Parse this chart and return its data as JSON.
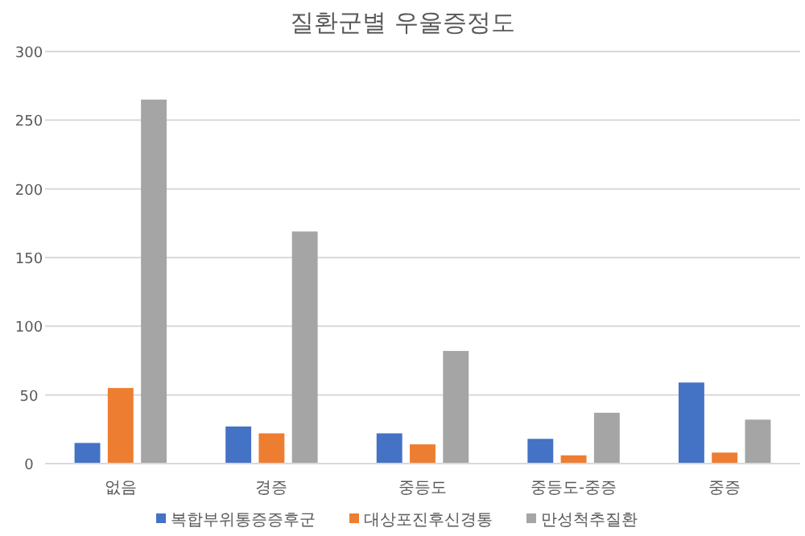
{
  "chart_data": {
    "type": "bar",
    "title": "질환군별 우울증정도",
    "categories": [
      "없음",
      "경증",
      "중등도",
      "중등도-중증",
      "중증"
    ],
    "series": [
      {
        "name": "복합부위통증증후군",
        "color": "#4472c4",
        "values": [
          15,
          27,
          22,
          18,
          59
        ]
      },
      {
        "name": "대상포진후신경통",
        "color": "#ed7d31",
        "values": [
          55,
          22,
          14,
          6,
          8
        ]
      },
      {
        "name": "만성척추질환",
        "color": "#a5a5a5",
        "values": [
          265,
          169,
          82,
          37,
          32
        ]
      }
    ],
    "ylim": [
      0,
      300
    ],
    "yticks": [
      0,
      50,
      100,
      150,
      200,
      250,
      300
    ],
    "grid": "y",
    "legend": "bottom"
  }
}
